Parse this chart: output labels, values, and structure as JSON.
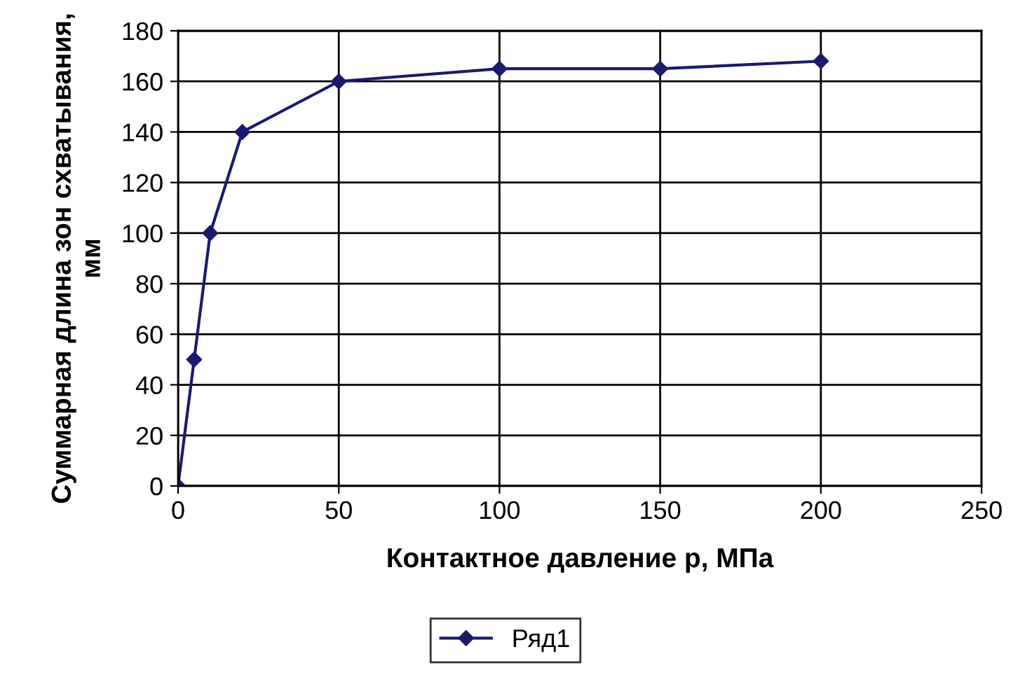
{
  "chart_data": {
    "type": "line",
    "xlabel": "Контактное давление p, МПа",
    "ylabel": "Суммарная длина зон схватывания, мм",
    "series": [
      {
        "name": "Ряд1",
        "color": "#1a1a6e",
        "x": [
          0,
          5,
          10,
          20,
          50,
          100,
          150,
          200
        ],
        "values": [
          0,
          50,
          100,
          140,
          160,
          165,
          165,
          168
        ]
      }
    ],
    "xlim": [
      0,
      250
    ],
    "xticks": [
      0,
      50,
      100,
      150,
      200,
      250
    ],
    "ylim": [
      0,
      180
    ],
    "yticks": [
      0,
      20,
      40,
      60,
      80,
      100,
      120,
      140,
      160,
      180
    ],
    "grid": true,
    "legend": "bottom",
    "marker": "diamond",
    "line_style": "solid"
  }
}
